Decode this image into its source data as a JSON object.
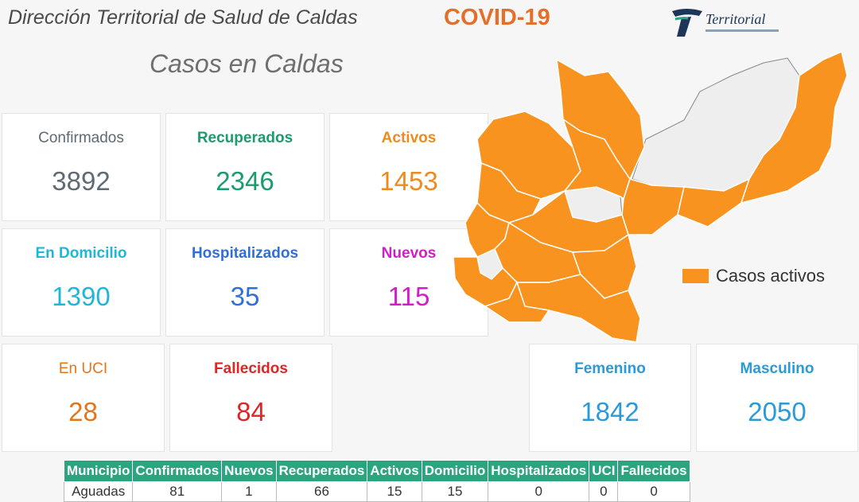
{
  "header": {
    "title": "Dirección Territorial de Salud de Caldas",
    "covid_label": "COVID-19",
    "logo_text": "Territorial"
  },
  "subtitle": "Casos en Caldas",
  "stats": {
    "confirmados": {
      "label": "Confirmados",
      "value": "3892",
      "color": "#5f6a72"
    },
    "recuperados": {
      "label": "Recuperados",
      "value": "2346",
      "color": "#1a9c6e"
    },
    "activos": {
      "label": "Activos",
      "value": "1453",
      "color": "#f08a1c"
    },
    "domicilio": {
      "label": "En Domicilio",
      "value": "1390",
      "color": "#1fb6d9"
    },
    "hospitalizados": {
      "label": "Hospitalizados",
      "value": "35",
      "color": "#2f6fd6"
    },
    "nuevos": {
      "label": "Nuevos",
      "value": "115",
      "color": "#d21ec9"
    },
    "uci": {
      "label": "En UCI",
      "value": "28",
      "color": "#e4751b"
    },
    "fallecidos": {
      "label": "Fallecidos",
      "value": "84",
      "color": "#e02525"
    },
    "femenino": {
      "label": "Femenino",
      "value": "1842",
      "color": "#2b9bd8"
    },
    "masculino": {
      "label": "Masculino",
      "value": "2050",
      "color": "#2b9bd8"
    }
  },
  "legend": {
    "label": "Casos activos",
    "color": "#f7931e"
  },
  "table": {
    "headers": [
      "Municipio",
      "Confirmados",
      "Nuevos",
      "Recuperados",
      "Activos",
      "Domicilio",
      "Hospitalizados",
      "UCI",
      "Fallecidos"
    ],
    "rows": [
      [
        "Aguadas",
        "81",
        "1",
        "66",
        "15",
        "15",
        "0",
        "0",
        "0"
      ]
    ]
  }
}
